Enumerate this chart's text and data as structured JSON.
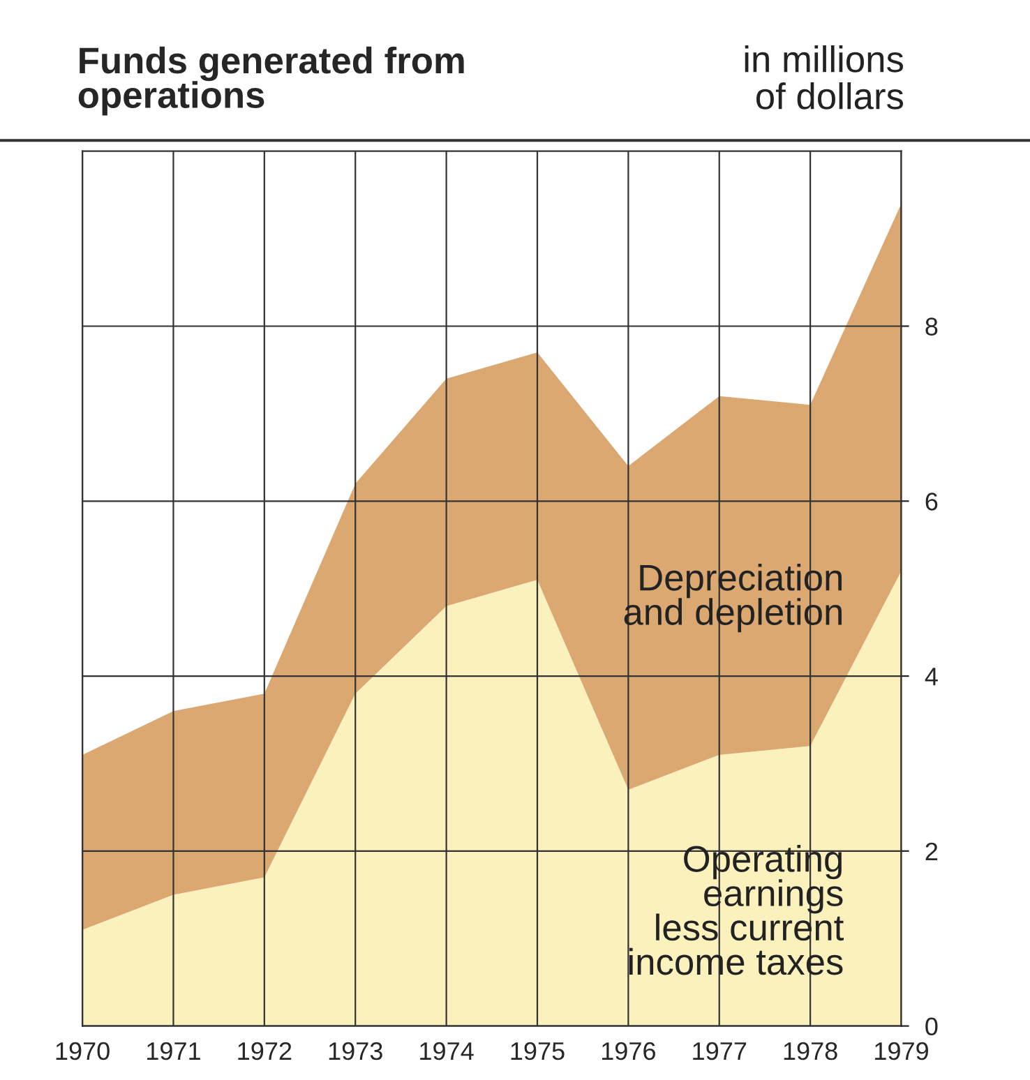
{
  "chart_data": {
    "type": "area",
    "stacked": true,
    "title": "Funds generated from\noperations",
    "subtitle": "in millions\nof dollars",
    "x": [
      1970,
      1971,
      1972,
      1973,
      1974,
      1975,
      1976,
      1977,
      1978,
      1979
    ],
    "series": [
      {
        "name": "Operating\nearnings\nless current\nincome taxes",
        "color": "#fbf1bd",
        "values": [
          1.1,
          1.5,
          1.7,
          3.8,
          4.8,
          5.1,
          2.7,
          3.1,
          3.2,
          5.2
        ]
      },
      {
        "name": "Depreciation\nand depletion",
        "color": "#dba872",
        "values": [
          2.0,
          2.1,
          2.1,
          2.4,
          2.6,
          2.6,
          3.7,
          4.1,
          3.9,
          4.2
        ]
      }
    ],
    "xlim": [
      1970,
      1979
    ],
    "ylim": [
      0,
      10
    ],
    "xticks": [
      1970,
      1971,
      1972,
      1973,
      1974,
      1975,
      1976,
      1977,
      1978,
      1979
    ],
    "yticks": [
      0,
      2,
      4,
      6,
      8
    ],
    "grid": true
  }
}
